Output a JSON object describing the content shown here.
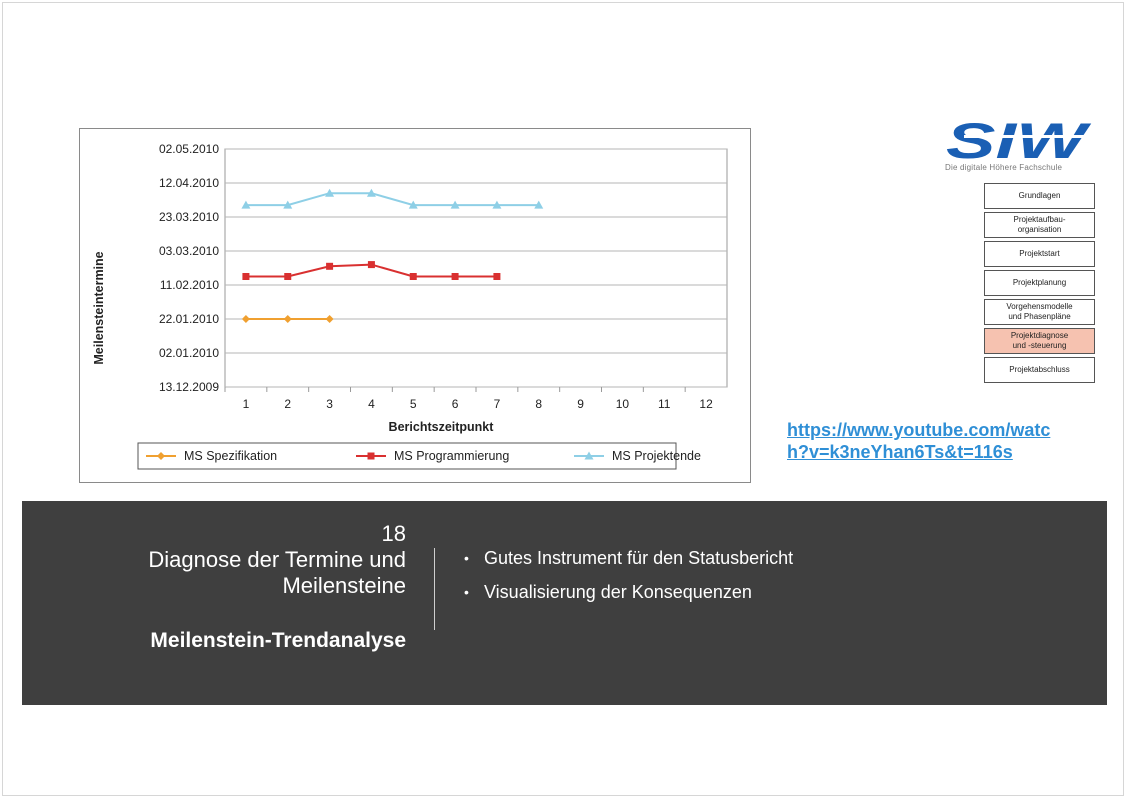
{
  "chart_data": {
    "type": "line",
    "xlabel": "Berichtszeitpunkt",
    "ylabel": "Meilensteintermine",
    "x_ticks": [
      1,
      2,
      3,
      4,
      5,
      6,
      7,
      8,
      9,
      10,
      11,
      12
    ],
    "y_ticks": [
      "13.12.2009",
      "02.01.2010",
      "22.01.2010",
      "11.02.2010",
      "03.03.2010",
      "23.03.2010",
      "12.04.2010",
      "02.05.2010"
    ],
    "ylim": [
      "13.12.2009",
      "02.05.2010"
    ],
    "grid": true,
    "legend_position": "bottom",
    "series": [
      {
        "name": "MS Spezifikation",
        "color": "#f0a030",
        "marker": "diamond",
        "x": [
          1,
          2,
          3
        ],
        "y": [
          "22.01.2010",
          "22.01.2010",
          "22.01.2010"
        ]
      },
      {
        "name": "MS Programmierung",
        "color": "#d93030",
        "marker": "square",
        "x": [
          1,
          2,
          3,
          4,
          5,
          6,
          7
        ],
        "y": [
          "16.02.2010",
          "16.02.2010",
          "22.02.2010",
          "23.02.2010",
          "16.02.2010",
          "16.02.2010",
          "16.02.2010"
        ]
      },
      {
        "name": "MS Projektende",
        "color": "#8ecfe6",
        "marker": "triangle",
        "x": [
          1,
          2,
          3,
          4,
          5,
          6,
          7,
          8
        ],
        "y": [
          "30.03.2010",
          "30.03.2010",
          "06.04.2010",
          "06.04.2010",
          "30.03.2010",
          "30.03.2010",
          "30.03.2010",
          "30.03.2010"
        ]
      }
    ]
  },
  "logo": {
    "text": "SIW",
    "tagline": "Die digitale Höhere Fachschule",
    "color": "#1a5fb4"
  },
  "nav": [
    {
      "label": "Grundlagen",
      "active": false
    },
    {
      "label": "Projektaufbau-\norganisation",
      "active": false
    },
    {
      "label": "Projektstart",
      "active": false
    },
    {
      "label": "Projektplanung",
      "active": false
    },
    {
      "label": "Vorgehensmodelle\nund Phasenpläne",
      "active": false
    },
    {
      "label": "Projektdiagnose\nund -steuerung",
      "active": true
    },
    {
      "label": "Projektabschluss",
      "active": false
    }
  ],
  "link": {
    "text": "https://www.youtube.com/watch?v=k3neYhan6Ts&t=116s"
  },
  "panel": {
    "number": "18",
    "title_line1": "Diagnose der Termine und",
    "title_line2": "Meilensteine",
    "subtitle": "Meilenstein-Trendanalyse",
    "bullets": [
      "Gutes Instrument für den Statusbericht",
      "Visualisierung der Konsequenzen"
    ]
  },
  "colors": {
    "panel_bg": "#3f3f3f",
    "link": "#2f8fd6",
    "nav_active": "#f6c2b0"
  }
}
